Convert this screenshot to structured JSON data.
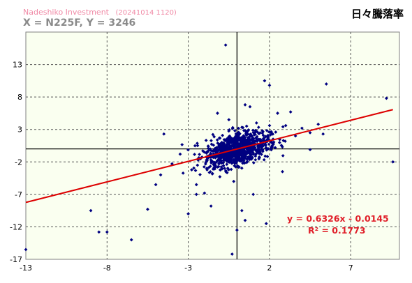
{
  "header": {
    "brand": "Nadeshiko Investment",
    "stamp": "(20241014 1120)",
    "xy_label": "X = N225F,  Y = 3246"
  },
  "chart_data": {
    "type": "scatter",
    "title": "日々騰落率",
    "xlabel": "",
    "ylabel": "",
    "xlim": [
      -13,
      10
    ],
    "ylim": [
      -17,
      18
    ],
    "xticks": [
      -13,
      -8,
      -3,
      2,
      7
    ],
    "yticks": [
      13,
      8,
      3,
      -2,
      -7,
      -12,
      -17
    ],
    "grid": true,
    "colors": {
      "points": "#000080",
      "trend": "#dd0000",
      "plot_bg": "#fafff0",
      "equation": "#e0202a"
    },
    "trendline": {
      "slope": 0.6326,
      "intercept": -0.0145,
      "equation": "y = 0.6326x - 0.0145",
      "r2_label": "R² = 0.1773"
    },
    "outliers": [
      {
        "x": -13.0,
        "y": -15.5
      },
      {
        "x": -6.5,
        "y": -14.0
      },
      {
        "x": -8.0,
        "y": -12.8
      },
      {
        "x": -8.5,
        "y": -12.8
      },
      {
        "x": -9.0,
        "y": -9.5
      },
      {
        "x": -5.0,
        "y": -5.5
      },
      {
        "x": -4.7,
        "y": -4.0
      },
      {
        "x": -4.0,
        "y": -2.3
      },
      {
        "x": -4.5,
        "y": 2.3
      },
      {
        "x": -5.5,
        "y": -9.3
      },
      {
        "x": -2.5,
        "y": -7.0
      },
      {
        "x": -3.0,
        "y": -10.0
      },
      {
        "x": -2.0,
        "y": -6.8
      },
      {
        "x": -1.6,
        "y": -8.8
      },
      {
        "x": -0.7,
        "y": 16.0
      },
      {
        "x": -0.5,
        "y": 4.5
      },
      {
        "x": 1.7,
        "y": 10.5
      },
      {
        "x": 2.0,
        "y": 9.8
      },
      {
        "x": 2.5,
        "y": 5.5
      },
      {
        "x": 3.3,
        "y": 5.7
      },
      {
        "x": 3.0,
        "y": 3.6
      },
      {
        "x": 3.6,
        "y": 2.0
      },
      {
        "x": 4.0,
        "y": 3.2
      },
      {
        "x": 4.5,
        "y": 2.5
      },
      {
        "x": 5.0,
        "y": 3.8
      },
      {
        "x": 5.3,
        "y": 2.3
      },
      {
        "x": 5.5,
        "y": 10.0
      },
      {
        "x": 9.2,
        "y": 7.8
      },
      {
        "x": 9.6,
        "y": -2.0
      },
      {
        "x": 4.5,
        "y": -0.1
      },
      {
        "x": 0.5,
        "y": -11.0
      },
      {
        "x": 0.0,
        "y": -12.5
      },
      {
        "x": -0.3,
        "y": -16.2
      },
      {
        "x": 1.8,
        "y": -11.5
      },
      {
        "x": 0.3,
        "y": -9.5
      },
      {
        "x": 1.0,
        "y": -7.0
      },
      {
        "x": 2.8,
        "y": -3.5
      },
      {
        "x": -0.2,
        "y": -5.0
      },
      {
        "x": 0.8,
        "y": 6.5
      },
      {
        "x": -1.2,
        "y": 5.5
      },
      {
        "x": 1.2,
        "y": 4.0
      },
      {
        "x": -2.5,
        "y": -5.5
      },
      {
        "x": -3.5,
        "y": -0.8
      },
      {
        "x": 0.5,
        "y": 6.8
      }
    ],
    "cluster": {
      "n": 950,
      "sx": 1.0,
      "sy": 1.35,
      "corr": 0.42
    }
  }
}
